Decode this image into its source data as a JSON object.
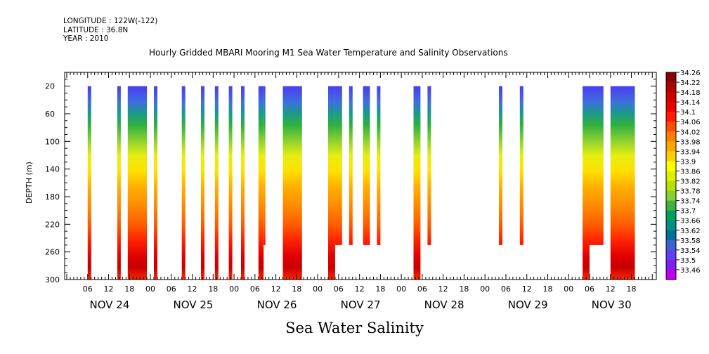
{
  "header": {
    "longitude": "LONGITUDE : 122W(-122)",
    "latitude": "LATITUDE : 36.8N",
    "year": "YEAR : 2010",
    "title": "Hourly Gridded MBARI Mooring M1 Sea Water Temperature and Salinity Observations"
  },
  "bottom_label": "Sea Water Salinity",
  "chart_data": {
    "type": "heatmap",
    "title": "Hourly Gridded MBARI Mooring M1 Sea Water Temperature and Salinity Observations",
    "ylabel": "DEPTH (m)",
    "xlabel": "",
    "y_axis": {
      "range": [
        0,
        300
      ],
      "inverted": true,
      "ticks": [
        20,
        60,
        100,
        140,
        180,
        220,
        260,
        300
      ]
    },
    "x_axis": {
      "range_hours": [
        0,
        168
      ],
      "hour_ticks": [
        "00",
        "06",
        "12",
        "18"
      ],
      "day_labels": [
        "NOV 24",
        "NOV 25",
        "NOV 26",
        "NOV 27",
        "NOV 28",
        "NOV 29",
        "NOV 30"
      ]
    },
    "colorbar": {
      "labels": [
        "34.26",
        "34.22",
        "34.18",
        "34.14",
        "34.1",
        "34.06",
        "34.02",
        "33.98",
        "33.94",
        "33.9",
        "33.86",
        "33.82",
        "33.78",
        "33.74",
        "33.7",
        "33.66",
        "33.62",
        "33.58",
        "33.54",
        "33.5",
        "33.46"
      ],
      "colors": [
        "#8b0000",
        "#b00000",
        "#d40000",
        "#ee0000",
        "#ff1a00",
        "#ff4d00",
        "#ff7f00",
        "#ffa500",
        "#ffd000",
        "#ffff00",
        "#e0f000",
        "#b8e000",
        "#88d030",
        "#40b040",
        "#00a060",
        "#009080",
        "#00709a",
        "#4060d0",
        "#6040f0",
        "#8020f0",
        "#c000f0"
      ],
      "value_min": 33.46,
      "value_max": 34.26
    },
    "segments": [
      {
        "start": 6,
        "end": 7,
        "min_depth": 20,
        "max_depth": 300
      },
      {
        "start": 14.5,
        "end": 15.5,
        "min_depth": 20,
        "max_depth": 300
      },
      {
        "start": 17.5,
        "end": 23,
        "min_depth": 20,
        "max_depth": 300
      },
      {
        "start": 25,
        "end": 26,
        "min_depth": 20,
        "max_depth": 300
      },
      {
        "start": 33,
        "end": 34,
        "min_depth": 20,
        "max_depth": 300
      },
      {
        "start": 38.5,
        "end": 39.5,
        "min_depth": 20,
        "max_depth": 300
      },
      {
        "start": 42.5,
        "end": 43.5,
        "min_depth": 20,
        "max_depth": 300
      },
      {
        "start": 46.5,
        "end": 47.5,
        "min_depth": 20,
        "max_depth": 300
      },
      {
        "start": 50,
        "end": 51,
        "min_depth": 20,
        "max_depth": 300
      },
      {
        "start": 55,
        "end": 56.5,
        "min_depth": 20,
        "max_depth": 300
      },
      {
        "start": 56.5,
        "end": 57,
        "min_depth": 20,
        "max_depth": 250
      },
      {
        "start": 62,
        "end": 67.5,
        "min_depth": 20,
        "max_depth": 300
      },
      {
        "start": 75,
        "end": 77,
        "min_depth": 20,
        "max_depth": 300
      },
      {
        "start": 77,
        "end": 79,
        "min_depth": 20,
        "max_depth": 250
      },
      {
        "start": 81,
        "end": 82,
        "min_depth": 20,
        "max_depth": 250
      },
      {
        "start": 85,
        "end": 87,
        "min_depth": 20,
        "max_depth": 250
      },
      {
        "start": 89,
        "end": 90,
        "min_depth": 20,
        "max_depth": 250
      },
      {
        "start": 99.5,
        "end": 101.5,
        "min_depth": 20,
        "max_depth": 300
      },
      {
        "start": 103.5,
        "end": 104.5,
        "min_depth": 20,
        "max_depth": 250
      },
      {
        "start": 124,
        "end": 125,
        "min_depth": 20,
        "max_depth": 250
      },
      {
        "start": 130,
        "end": 131,
        "min_depth": 20,
        "max_depth": 250
      },
      {
        "start": 148,
        "end": 150,
        "min_depth": 20,
        "max_depth": 300
      },
      {
        "start": 150,
        "end": 154,
        "min_depth": 20,
        "max_depth": 250
      },
      {
        "start": 156,
        "end": 163,
        "min_depth": 20,
        "max_depth": 300
      }
    ]
  }
}
